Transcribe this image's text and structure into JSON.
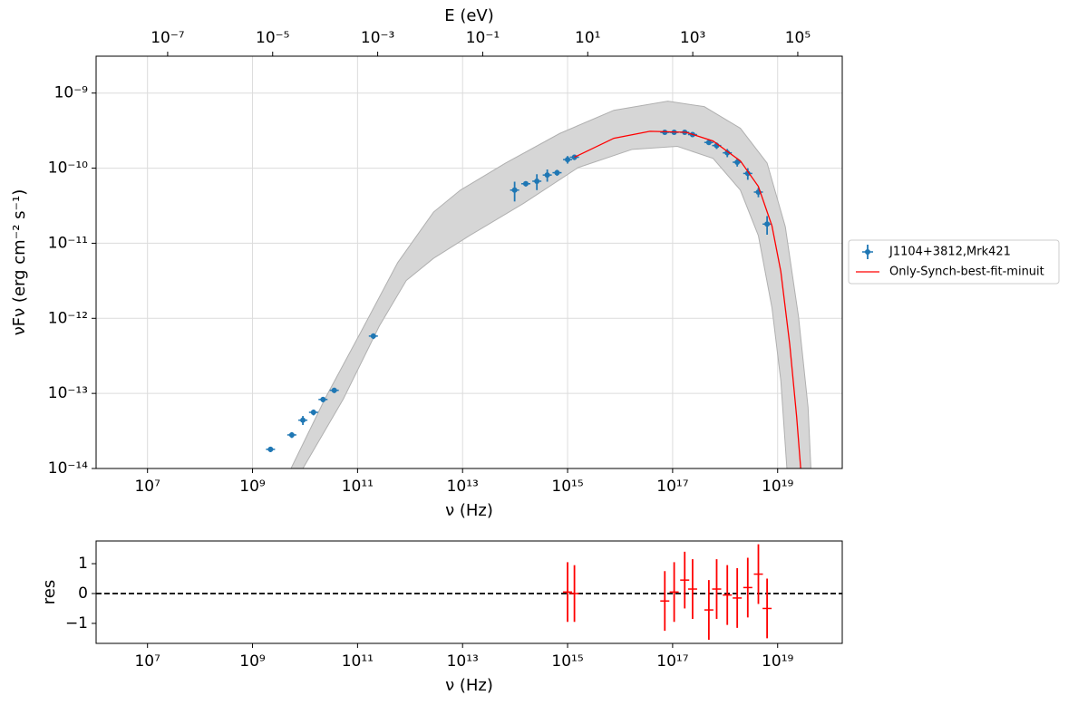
{
  "chart_data": [
    {
      "type": "scatter",
      "x2label": "E (eV)",
      "xlabel": "ν  (Hz)",
      "ylabel": "νFν  (erg cm⁻²  s⁻¹)",
      "xscale": "log",
      "yscale": "log",
      "grid": true,
      "legend": "center right outside",
      "xlim": [
        1050000.0,
        1.7e+20
      ],
      "xticks": [
        {
          "value": 10000000.0,
          "label": "10⁷"
        },
        {
          "value": 1000000000.0,
          "label": "10⁹"
        },
        {
          "value": 100000000000.0,
          "label": "10¹¹"
        },
        {
          "value": 10000000000000.0,
          "label": "10¹³"
        },
        {
          "value": 1000000000000000.0,
          "label": "10¹⁵"
        },
        {
          "value": 1e+17,
          "label": "10¹⁷"
        },
        {
          "value": 1e+19,
          "label": "10¹⁹"
        }
      ],
      "x2lim": [
        4.34e-09,
        703000.0
      ],
      "x2ticks": [
        {
          "value": 1e-07,
          "label": "10⁻⁷"
        },
        {
          "value": 1e-05,
          "label": "10⁻⁵"
        },
        {
          "value": 0.001,
          "label": "10⁻³"
        },
        {
          "value": 0.1,
          "label": "10⁻¹"
        },
        {
          "value": 10,
          "label": "10¹"
        },
        {
          "value": 1000,
          "label": "10³"
        },
        {
          "value": 100000,
          "label": "10⁵"
        }
      ],
      "ylim": [
        1e-14,
        3.1e-09
      ],
      "yticks": [
        {
          "value": 1e-14,
          "label": "10⁻¹⁴"
        },
        {
          "value": 1e-13,
          "label": "10⁻¹³"
        },
        {
          "value": 1e-12,
          "label": "10⁻¹²"
        },
        {
          "value": 1e-11,
          "label": "10⁻¹¹"
        },
        {
          "value": 1e-10,
          "label": "10⁻¹⁰"
        },
        {
          "value": 1e-09,
          "label": "10⁻⁹"
        }
      ],
      "band": {
        "color": "#d6d6d6",
        "x_upper": [
          5400000000.0,
          24000000000.0,
          120000000000.0,
          580000000000.0,
          2800000000000.0,
          9100000000000.0,
          66000000000000.0,
          710000000000000.0,
          7600000000000000.0,
          8.1e+16,
          4e+17,
          1.95e+18,
          6.3e+18,
          1.4e+19,
          2.5e+19,
          3.8e+19,
          4.3e+19
        ],
        "upper": [
          1e-14,
          8.5e-14,
          6.9e-13,
          5.5e-12,
          2.6e-11,
          5.1e-11,
          1.17e-10,
          2.9e-10,
          5.9e-10,
          7.8e-10,
          6.6e-10,
          3.4e-10,
          1.17e-10,
          1.66e-11,
          1.05e-12,
          6.5e-14,
          1e-14
        ],
        "x_lower": [
          9100000000.0,
          54000000000.0,
          260000000000.0,
          850000000000.0,
          2800000000000.0,
          13500000000000.0,
          145000000000000.0,
          1600000000000000.0,
          1.7e+16,
          1.23e+17,
          5.9e+17,
          1.95e+18,
          4.3e+18,
          7.8e+18,
          1.15e+19,
          1.5e+19
        ],
        "lower": [
          1e-14,
          8.5e-14,
          7.9e-13,
          3.2e-12,
          6.3e-12,
          1.26e-11,
          3.4e-11,
          1.02e-10,
          1.78e-10,
          1.95e-10,
          1.35e-10,
          5.1e-11,
          1.26e-11,
          1.38e-12,
          1.48e-13,
          1e-14
        ]
      },
      "series": [
        {
          "name": "J1104+3812,Mrk421",
          "color": "#1f77b4",
          "type": "errorbar",
          "x": [
            2200000000.0,
            5600000000.0,
            9100000000.0,
            14500000000.0,
            22000000000.0,
            36000000000.0,
            200000000000.0,
            98000000000000.0,
            160000000000000.0,
            260000000000000.0,
            410000000000000.0,
            630000000000000.0,
            1000000000000000.0,
            1350000000000000.0,
            7.1e+16,
            1.07e+17,
            1.7e+17,
            2.4e+17,
            4.9e+17,
            6.9e+17,
            1.1e+18,
            1.7e+18,
            2.7e+18,
            4.3e+18,
            6.3e+18
          ],
          "values": [
            1.8e-14,
            2.8e-14,
            4.4e-14,
            5.6e-14,
            8.3e-14,
            1.1e-13,
            5.8e-13,
            5.1e-11,
            6.2e-11,
            6.7e-11,
            8.1e-11,
            8.7e-11,
            1.3e-10,
            1.4e-10,
            3e-10,
            3e-10,
            3e-10,
            2.8e-10,
            2.2e-10,
            2e-10,
            1.6e-10,
            1.2e-10,
            8.5e-11,
            4.8e-11,
            1.8e-11
          ],
          "yerr": [
            1.5e-15,
            2.5e-15,
            6e-15,
            5e-15,
            7e-15,
            9e-15,
            5e-14,
            1.5e-11,
            5e-12,
            1.6e-11,
            1.5e-11,
            8e-12,
            1.5e-11,
            1.2e-11,
            1.5e-11,
            1.5e-11,
            1.5e-11,
            1.4e-11,
            1.5e-11,
            2e-11,
            2e-11,
            1.5e-11,
            1.5e-11,
            7e-12,
            5e-12
          ]
        },
        {
          "name": "Only-Synch-best-fit-minuit",
          "color": "#ff0000",
          "type": "line",
          "x": [
            1350000000000000.0,
            7600000000000000.0,
            3.7e+16,
            1.8e+17,
            5.9e+17,
            1.95e+18,
            4.3e+18,
            7.8e+18,
            1.15e+19,
            1.7e+19,
            2.3e+19,
            2.75e+19
          ],
          "values": [
            1.4e-10,
            2.5e-10,
            3.1e-10,
            3e-10,
            2.3e-10,
            1.25e-10,
            5.7e-11,
            1.7e-11,
            4.2e-12,
            4.5e-13,
            4.9e-14,
            1e-14
          ]
        }
      ]
    },
    {
      "type": "scatter",
      "xlabel": "ν  (Hz)",
      "ylabel": "res",
      "xscale": "log",
      "xlim": [
        1050000.0,
        1.7e+20
      ],
      "xticks": [
        {
          "value": 10000000.0,
          "label": "10⁷"
        },
        {
          "value": 1000000000.0,
          "label": "10⁹"
        },
        {
          "value": 100000000000.0,
          "label": "10¹¹"
        },
        {
          "value": 10000000000000.0,
          "label": "10¹³"
        },
        {
          "value": 1000000000000000.0,
          "label": "10¹⁵"
        },
        {
          "value": 1e+17,
          "label": "10¹⁷"
        },
        {
          "value": 1e+19,
          "label": "10¹⁹"
        }
      ],
      "ylim": [
        -1.67,
        1.76
      ],
      "yticks": [
        {
          "value": -1,
          "label": "−1"
        },
        0,
        1
      ],
      "hline": 0,
      "series": [
        {
          "color": "#ff0000",
          "x": [
            1000000000000000.0,
            1350000000000000.0,
            7.1e+16,
            1.07e+17,
            1.7e+17,
            2.4e+17,
            4.9e+17,
            6.9e+17,
            1.1e+18,
            1.7e+18,
            2.7e+18,
            4.3e+18,
            6.3e+18
          ],
          "values": [
            0.05,
            0,
            -0.25,
            0.05,
            0.45,
            0.15,
            -0.55,
            0.15,
            -0.05,
            -0.15,
            0.2,
            0.65,
            -0.5
          ],
          "yerr": [
            1.0,
            0.95,
            1.0,
            1.0,
            0.95,
            1.0,
            1.0,
            1.0,
            1.0,
            1.0,
            1.0,
            1.0,
            1.0
          ]
        }
      ]
    }
  ]
}
